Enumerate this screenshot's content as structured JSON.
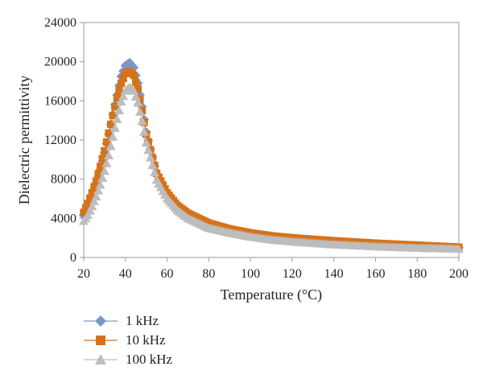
{
  "chart_data": {
    "type": "scatter",
    "title": "",
    "xlabel": "Temperature (°C)",
    "ylabel": "Dielectric permittivity",
    "xlim": [
      20,
      200
    ],
    "ylim": [
      0,
      24000
    ],
    "xticks": [
      20,
      40,
      60,
      80,
      100,
      120,
      140,
      160,
      180,
      200
    ],
    "yticks": [
      0,
      4000,
      8000,
      12000,
      16000,
      20000,
      24000
    ],
    "xtick_labels": [
      "20",
      "40",
      "60",
      "80",
      "100",
      "120",
      "140",
      "160",
      "180",
      "200"
    ],
    "ytick_labels": [
      "0",
      "4000",
      "8000",
      "12000",
      "16000",
      "20000",
      "24000"
    ],
    "grid": false,
    "legend_position": "bottom-left",
    "series": [
      {
        "name": "1 kHz",
        "marker": "diamond",
        "color": "#7b96c9",
        "x": [
          20,
          22,
          24,
          26,
          28,
          30,
          32,
          34,
          36,
          38,
          40,
          42,
          44,
          46,
          48,
          50,
          55,
          60,
          65,
          70,
          80,
          90,
          100,
          110,
          120,
          140,
          160,
          180,
          200
        ],
        "y": [
          4300,
          5200,
          6300,
          7600,
          9000,
          10700,
          12600,
          14600,
          16600,
          18500,
          19600,
          19900,
          19400,
          17800,
          15400,
          12800,
          8500,
          6400,
          5100,
          4300,
          3300,
          2700,
          2300,
          2000,
          1800,
          1500,
          1300,
          1150,
          1000
        ]
      },
      {
        "name": "10 kHz",
        "marker": "square",
        "color": "#d6731a",
        "x": [
          20,
          22,
          24,
          26,
          28,
          30,
          32,
          34,
          36,
          38,
          40,
          42,
          44,
          46,
          48,
          50,
          55,
          60,
          65,
          70,
          80,
          90,
          100,
          110,
          120,
          140,
          160,
          180,
          200
        ],
        "y": [
          4600,
          5500,
          6600,
          7800,
          9300,
          10900,
          12700,
          14500,
          16300,
          17800,
          18800,
          19000,
          18600,
          17200,
          15000,
          12600,
          8600,
          6600,
          5300,
          4500,
          3500,
          2900,
          2500,
          2200,
          2000,
          1700,
          1450,
          1250,
          1050
        ]
      },
      {
        "name": "100 kHz",
        "marker": "triangle",
        "color": "#bdbdbd",
        "x": [
          20,
          22,
          24,
          26,
          28,
          30,
          32,
          34,
          36,
          38,
          40,
          42,
          44,
          46,
          48,
          50,
          55,
          60,
          65,
          70,
          80,
          90,
          100,
          110,
          120,
          140,
          160,
          180,
          200
        ],
        "y": [
          3700,
          4300,
          5200,
          6200,
          7400,
          8800,
          10400,
          12300,
          14100,
          15900,
          17000,
          17400,
          17000,
          15800,
          13900,
          11700,
          7900,
          6000,
          4800,
          4000,
          3000,
          2500,
          2100,
          1800,
          1600,
          1300,
          1100,
          950,
          850
        ]
      }
    ]
  }
}
